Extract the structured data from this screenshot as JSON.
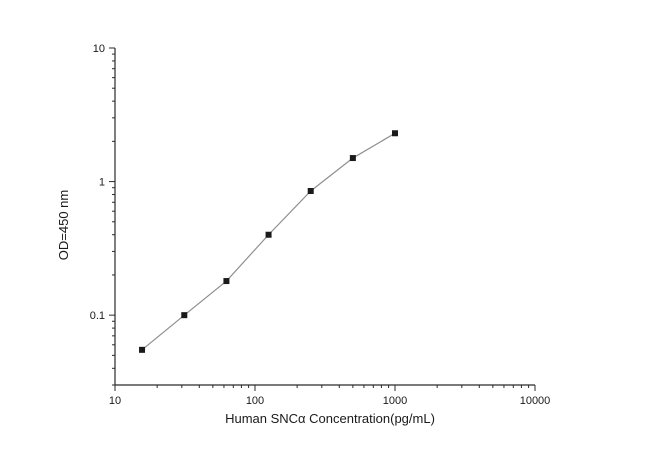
{
  "chart_data": {
    "type": "scatter",
    "title": "",
    "xlabel": "Human SNCα  Concentration(pg/mL)",
    "ylabel": "OD=450 nm",
    "xscale": "log",
    "yscale": "log",
    "xlim": [
      10,
      10000
    ],
    "ylim": [
      0.03,
      10
    ],
    "x": [
      15.6,
      31.25,
      62.5,
      125,
      250,
      500,
      1000
    ],
    "y": [
      0.055,
      0.1,
      0.18,
      0.4,
      0.85,
      1.5,
      2.3
    ],
    "x_major_ticks": [
      10,
      100,
      1000,
      10000
    ],
    "x_major_tick_labels": [
      "10",
      "100",
      "1000",
      "10000"
    ],
    "y_major_ticks": [
      0.1,
      1,
      10
    ],
    "y_major_tick_labels": [
      "0.1",
      "1",
      "10"
    ],
    "grid": "off",
    "legend": "none",
    "marker": "filled-square",
    "marker_color": "#1a1a1a",
    "line_color": "#8f8f8f",
    "background_color": "#ffffff"
  }
}
